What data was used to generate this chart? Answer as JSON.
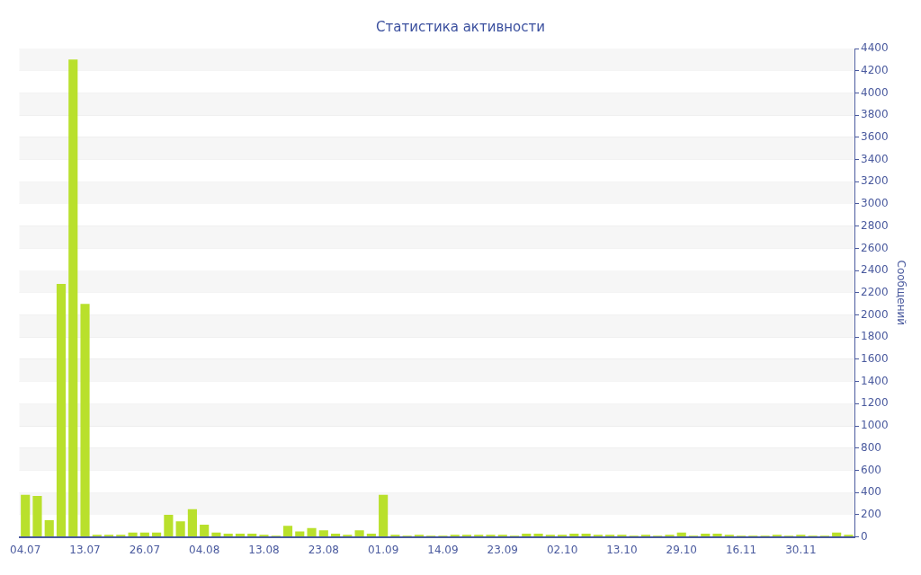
{
  "chart_data": {
    "type": "bar",
    "title": "Статистика активности",
    "ylabel": "Сообщений",
    "categories": [
      "04.07",
      null,
      null,
      null,
      null,
      "13.07",
      null,
      null,
      null,
      null,
      "26.07",
      null,
      null,
      null,
      null,
      "04.08",
      null,
      null,
      null,
      null,
      "13.08",
      null,
      null,
      null,
      null,
      "23.08",
      null,
      null,
      null,
      null,
      "01.09",
      null,
      null,
      null,
      null,
      "14.09",
      null,
      null,
      null,
      null,
      "23.09",
      null,
      null,
      null,
      null,
      "02.10",
      null,
      null,
      null,
      null,
      "13.10",
      null,
      null,
      null,
      null,
      "29.10",
      null,
      null,
      null,
      null,
      "16.11",
      null,
      null,
      null,
      null,
      "30.11",
      null,
      null,
      null,
      null
    ],
    "values": [
      380,
      370,
      150,
      2280,
      4300,
      2100,
      20,
      20,
      20,
      40,
      40,
      40,
      200,
      140,
      250,
      110,
      40,
      30,
      30,
      30,
      20,
      10,
      100,
      50,
      80,
      60,
      30,
      20,
      60,
      30,
      380,
      20,
      10,
      20,
      10,
      10,
      20,
      20,
      20,
      20,
      20,
      10,
      30,
      30,
      20,
      20,
      30,
      30,
      20,
      20,
      20,
      10,
      20,
      10,
      20,
      40,
      10,
      30,
      30,
      20,
      10,
      10,
      10,
      20,
      10,
      20,
      10,
      10,
      40,
      20
    ],
    "color": "#b9e02c",
    "ylim": [
      0,
      4400
    ],
    "yticks": [
      0,
      200,
      400,
      600,
      800,
      1000,
      1200,
      1400,
      1600,
      1800,
      2000,
      2200,
      2400,
      2600,
      2800,
      3000,
      3200,
      3400,
      3600,
      3800,
      4000,
      4200,
      4400
    ],
    "grid": "y",
    "legend": false
  }
}
